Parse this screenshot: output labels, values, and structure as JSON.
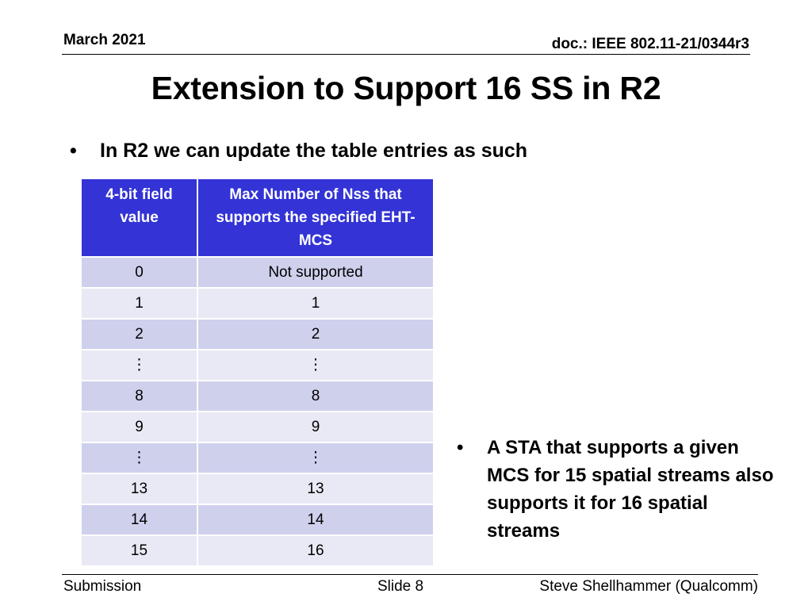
{
  "header": {
    "date": "March 2021",
    "doc": "doc.: IEEE 802.11-21/0344r3"
  },
  "title": "Extension to Support 16 SS in R2",
  "bullet1": {
    "marker": "•",
    "text": "In R2 we can update the table entries as such"
  },
  "table": {
    "headers": [
      "4-bit field value",
      "Max Number of Nss that supports the specified EHT-MCS"
    ],
    "rows": [
      [
        "0",
        "Not supported"
      ],
      [
        "1",
        "1"
      ],
      [
        "2",
        "2"
      ],
      [
        "⋮",
        "⋮"
      ],
      [
        "8",
        "8"
      ],
      [
        "9",
        "9"
      ],
      [
        "⋮",
        "⋮"
      ],
      [
        "13",
        "13"
      ],
      [
        "14",
        "14"
      ],
      [
        "15",
        "16"
      ]
    ],
    "header_color": "#3333d6",
    "row_color_odd": "#cfd0ec",
    "row_color_even": "#e9e9f5"
  },
  "bullet2": {
    "marker": "•",
    "text": "A STA that supports a given MCS for 15 spatial streams also supports it for 16 spatial streams"
  },
  "footer": {
    "left": "Submission",
    "center": "Slide 8",
    "right": "Steve Shellhammer (Qualcomm)"
  }
}
